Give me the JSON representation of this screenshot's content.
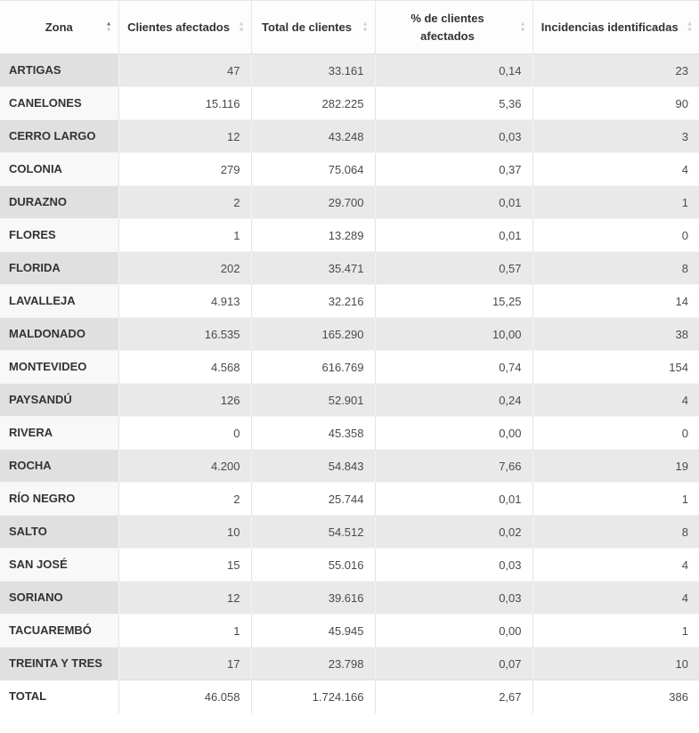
{
  "table": {
    "columns": [
      {
        "label": "Zona",
        "sort": "asc"
      },
      {
        "label": "Clientes afectados",
        "sort": "none"
      },
      {
        "label": "Total de clientes",
        "sort": "none"
      },
      {
        "label": "% de clientes afectados",
        "sort": "none"
      },
      {
        "label": "Incidencias identificadas",
        "sort": "none"
      }
    ],
    "sort_icon": {
      "up": "▲",
      "down": "▼"
    },
    "rows": [
      {
        "zona": "ARTIGAS",
        "clientes_afectados": "47",
        "total_clientes": "33.161",
        "pct_afectados": "0,14",
        "incidencias": "23"
      },
      {
        "zona": "CANELONES",
        "clientes_afectados": "15.116",
        "total_clientes": "282.225",
        "pct_afectados": "5,36",
        "incidencias": "90"
      },
      {
        "zona": "CERRO LARGO",
        "clientes_afectados": "12",
        "total_clientes": "43.248",
        "pct_afectados": "0,03",
        "incidencias": "3"
      },
      {
        "zona": "COLONIA",
        "clientes_afectados": "279",
        "total_clientes": "75.064",
        "pct_afectados": "0,37",
        "incidencias": "4"
      },
      {
        "zona": "DURAZNO",
        "clientes_afectados": "2",
        "total_clientes": "29.700",
        "pct_afectados": "0,01",
        "incidencias": "1"
      },
      {
        "zona": "FLORES",
        "clientes_afectados": "1",
        "total_clientes": "13.289",
        "pct_afectados": "0,01",
        "incidencias": "0"
      },
      {
        "zona": "FLORIDA",
        "clientes_afectados": "202",
        "total_clientes": "35.471",
        "pct_afectados": "0,57",
        "incidencias": "8"
      },
      {
        "zona": "LAVALLEJA",
        "clientes_afectados": "4.913",
        "total_clientes": "32.216",
        "pct_afectados": "15,25",
        "incidencias": "14"
      },
      {
        "zona": "MALDONADO",
        "clientes_afectados": "16.535",
        "total_clientes": "165.290",
        "pct_afectados": "10,00",
        "incidencias": "38"
      },
      {
        "zona": "MONTEVIDEO",
        "clientes_afectados": "4.568",
        "total_clientes": "616.769",
        "pct_afectados": "0,74",
        "incidencias": "154"
      },
      {
        "zona": "PAYSANDÚ",
        "clientes_afectados": "126",
        "total_clientes": "52.901",
        "pct_afectados": "0,24",
        "incidencias": "4"
      },
      {
        "zona": "RIVERA",
        "clientes_afectados": "0",
        "total_clientes": "45.358",
        "pct_afectados": "0,00",
        "incidencias": "0"
      },
      {
        "zona": "ROCHA",
        "clientes_afectados": "4.200",
        "total_clientes": "54.843",
        "pct_afectados": "7,66",
        "incidencias": "19"
      },
      {
        "zona": "RÍO NEGRO",
        "clientes_afectados": "2",
        "total_clientes": "25.744",
        "pct_afectados": "0,01",
        "incidencias": "1"
      },
      {
        "zona": "SALTO",
        "clientes_afectados": "10",
        "total_clientes": "54.512",
        "pct_afectados": "0,02",
        "incidencias": "8"
      },
      {
        "zona": "SAN JOSÉ",
        "clientes_afectados": "15",
        "total_clientes": "55.016",
        "pct_afectados": "0,03",
        "incidencias": "4"
      },
      {
        "zona": "SORIANO",
        "clientes_afectados": "12",
        "total_clientes": "39.616",
        "pct_afectados": "0,03",
        "incidencias": "4"
      },
      {
        "zona": "TACUAREMBÓ",
        "clientes_afectados": "1",
        "total_clientes": "45.945",
        "pct_afectados": "0,00",
        "incidencias": "1"
      },
      {
        "zona": "TREINTA Y TRES",
        "clientes_afectados": "17",
        "total_clientes": "23.798",
        "pct_afectados": "0,07",
        "incidencias": "10"
      }
    ],
    "footer": {
      "zona": "TOTAL",
      "clientes_afectados": "46.058",
      "total_clientes": "1.724.166",
      "pct_afectados": "2,67",
      "incidencias": "386"
    }
  },
  "colors": {
    "stripe_row": "#e9e9e9",
    "stripe_sorted_cell": "#e0e0e0",
    "white_sorted_cell": "#f8f8f8",
    "header_text": "#333333",
    "body_text": "#4a4a4a",
    "border": "#e0e0e0",
    "sort_arrow_active": "#757575",
    "sort_arrow_inactive": "#cccccc"
  }
}
